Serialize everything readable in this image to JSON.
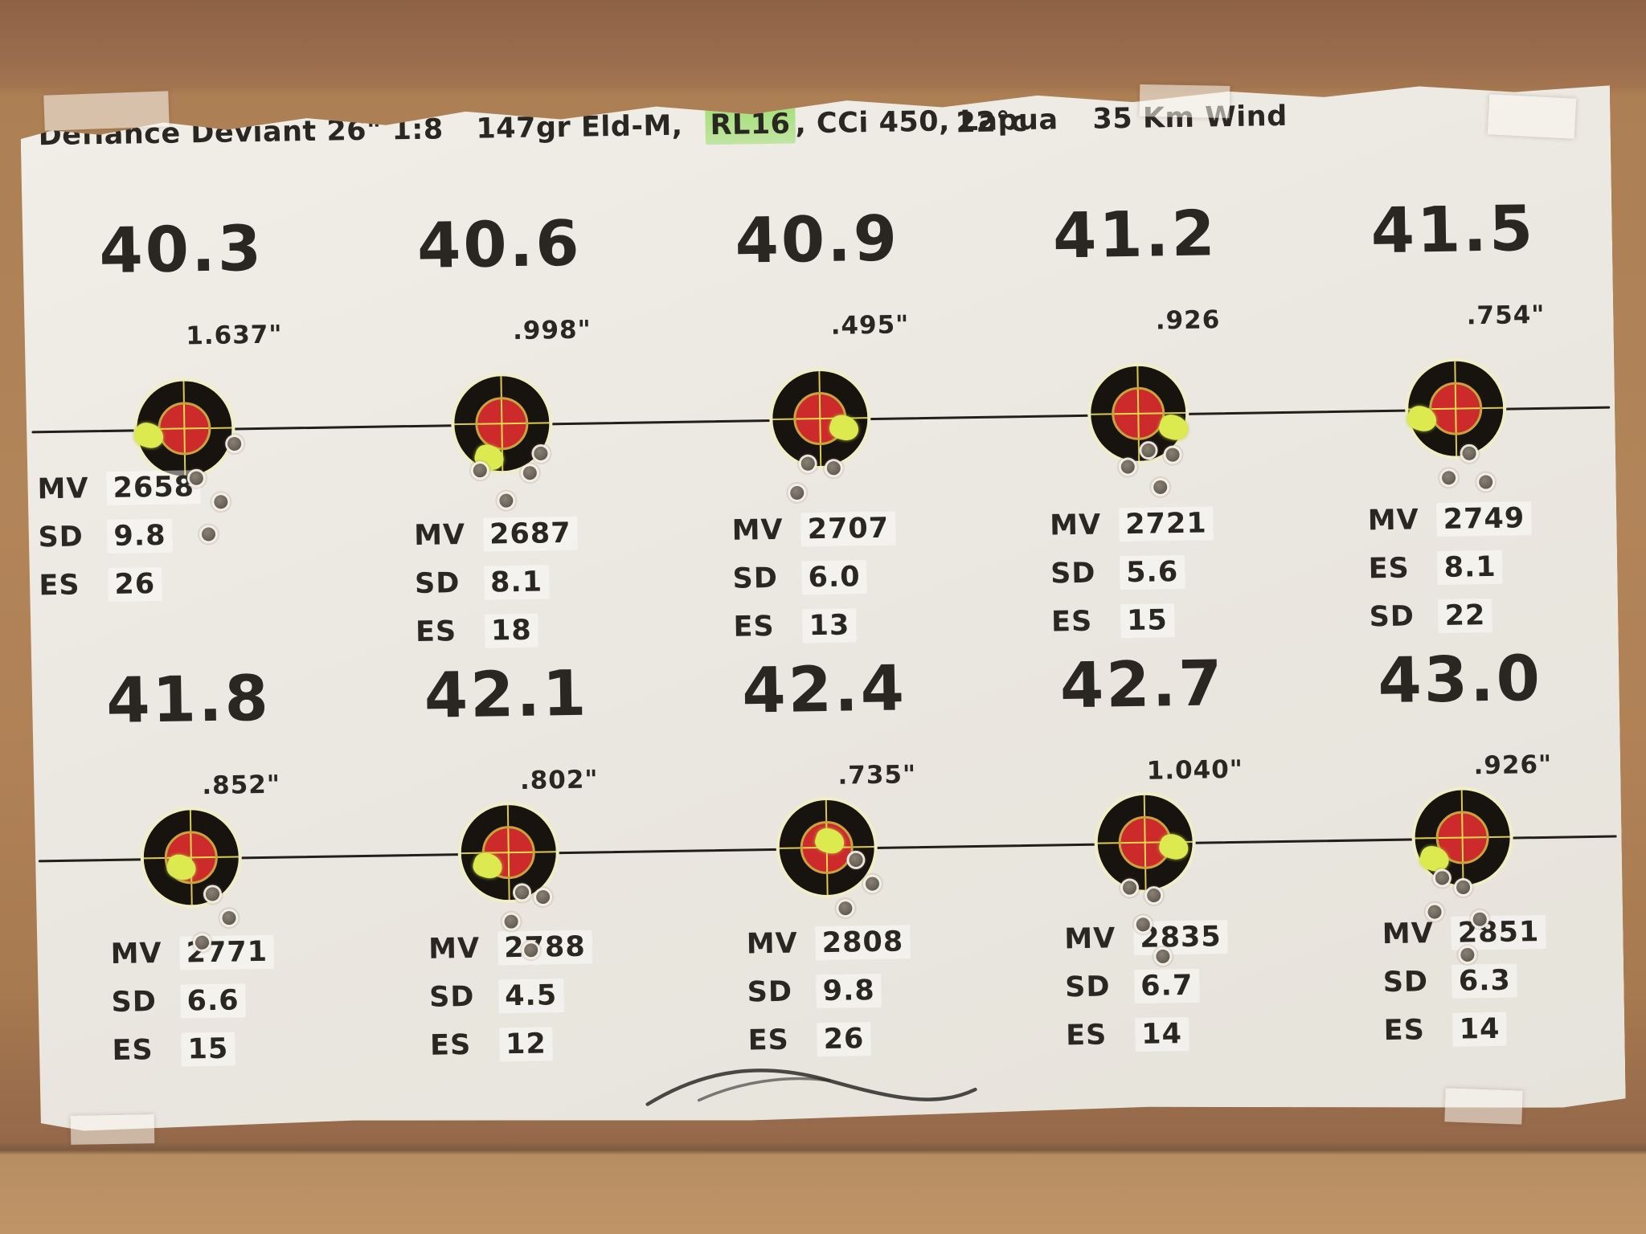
{
  "header": {
    "rifle": "Defiance Deviant 26\" 1:8",
    "load_prefix": "147gr Eld-M,",
    "powder_highlight": "RL16",
    "load_suffix": ", CCi 450, Lapua",
    "temperature": "22°c",
    "wind": "35 Km Wind",
    "highlight_color": "#94dd62"
  },
  "colors": {
    "paper": "#eeebe4",
    "wood": "#b28459",
    "bull_black": "#17130f",
    "bull_red": "#cd2a2c",
    "sticker_ring": "#f0eec6",
    "splatter": "#dcea50",
    "ink": "#2a2723"
  },
  "rows": [
    {
      "targets": [
        {
          "charge": "40.3",
          "group": "1.637\"",
          "stats": [
            {
              "label": "MV",
              "value": "2658"
            },
            {
              "label": "SD",
              "value": "9.8"
            },
            {
              "label": "ES",
              "value": "26"
            }
          ],
          "splatter": [
            -44,
            8
          ],
          "holes": [
            [
              14,
              62
            ],
            [
              44,
              92
            ],
            [
              28,
              132
            ],
            [
              62,
              20
            ]
          ]
        },
        {
          "charge": "40.6",
          "group": ".998\"",
          "stats": [
            {
              "label": "MV",
              "value": "2687"
            },
            {
              "label": "SD",
              "value": "8.1"
            },
            {
              "label": "ES",
              "value": "18"
            }
          ],
          "splatter": [
            -16,
            42
          ],
          "holes": [
            [
              -28,
              58
            ],
            [
              34,
              62
            ],
            [
              48,
              38
            ],
            [
              4,
              96
            ]
          ]
        },
        {
          "charge": "40.9",
          "group": ".495\"",
          "stats": [
            {
              "label": "MV",
              "value": "2707"
            },
            {
              "label": "SD",
              "value": "6.0"
            },
            {
              "label": "ES",
              "value": "13"
            }
          ],
          "splatter": [
            30,
            12
          ],
          "holes": [
            [
              -16,
              56
            ],
            [
              16,
              62
            ],
            [
              -30,
              92
            ]
          ]
        },
        {
          "charge": "41.2",
          "group": ".926",
          "stats": [
            {
              "label": "MV",
              "value": "2721"
            },
            {
              "label": "SD",
              "value": "5.6"
            },
            {
              "label": "ES",
              "value": "15"
            }
          ],
          "splatter": [
            44,
            18
          ],
          "holes": [
            [
              12,
              46
            ],
            [
              42,
              52
            ],
            [
              -14,
              66
            ],
            [
              26,
              92
            ]
          ]
        },
        {
          "charge": "41.5",
          "group": ".754\"",
          "stats": [
            {
              "label": "MV",
              "value": "2749"
            },
            {
              "label": "ES",
              "value": "8.1"
            },
            {
              "label": "SD",
              "value": "22"
            }
          ],
          "splatter": [
            -42,
            12
          ],
          "holes": [
            [
              16,
              56
            ],
            [
              -10,
              86
            ],
            [
              36,
              92
            ]
          ]
        }
      ]
    },
    {
      "targets": [
        {
          "charge": "41.8",
          "group": ".852\"",
          "stats": [
            {
              "label": "MV",
              "value": "2771"
            },
            {
              "label": "SD",
              "value": "6.6"
            },
            {
              "label": "ES",
              "value": "15"
            }
          ],
          "splatter": [
            -12,
            12
          ],
          "holes": [
            [
              26,
              46
            ],
            [
              46,
              76
            ],
            [
              12,
              106
            ]
          ]
        },
        {
          "charge": "42.1",
          "group": ".802\"",
          "stats": [
            {
              "label": "MV",
              "value": "2788"
            },
            {
              "label": "SD",
              "value": "4.5"
            },
            {
              "label": "ES",
              "value": "12"
            }
          ],
          "splatter": [
            -26,
            16
          ],
          "holes": [
            [
              16,
              50
            ],
            [
              42,
              56
            ],
            [
              2,
              86
            ],
            [
              26,
              122
            ]
          ]
        },
        {
          "charge": "42.4",
          "group": ".735\"",
          "stats": [
            {
              "label": "MV",
              "value": "2808"
            },
            {
              "label": "SD",
              "value": "9.8"
            },
            {
              "label": "ES",
              "value": "26"
            }
          ],
          "splatter": [
            4,
            -8
          ],
          "holes": [
            [
              36,
              16
            ],
            [
              56,
              46
            ],
            [
              22,
              76
            ]
          ]
        },
        {
          "charge": "42.7",
          "group": "1.040\"",
          "stats": [
            {
              "label": "MV",
              "value": "2835"
            },
            {
              "label": "SD",
              "value": "6.7"
            },
            {
              "label": "ES",
              "value": "14"
            }
          ],
          "splatter": [
            36,
            6
          ],
          "holes": [
            [
              -20,
              56
            ],
            [
              10,
              66
            ],
            [
              -4,
              102
            ],
            [
              20,
              142
            ]
          ]
        },
        {
          "charge": "43.0",
          "group": ".926\"",
          "stats": [
            {
              "label": "MV",
              "value": "2851"
            },
            {
              "label": "SD",
              "value": "6.3"
            },
            {
              "label": "ES",
              "value": "14"
            }
          ],
          "splatter": [
            -35,
            26
          ],
          "holes": [
            [
              -26,
              50
            ],
            [
              0,
              62
            ],
            [
              -36,
              92
            ],
            [
              20,
              102
            ],
            [
              4,
              146
            ]
          ]
        }
      ]
    }
  ]
}
